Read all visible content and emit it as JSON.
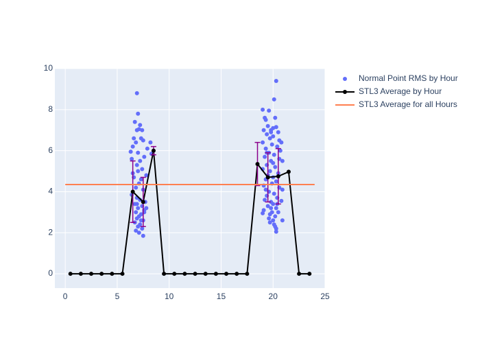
{
  "chart_data": {
    "type": "scatter",
    "xlim": [
      -1,
      25
    ],
    "ylim": [
      -0.7,
      10
    ],
    "xticks": [
      0,
      5,
      10,
      15,
      20,
      25
    ],
    "yticks": [
      0,
      2,
      4,
      6,
      8,
      10
    ],
    "grid": true,
    "legend": "right",
    "series": [
      {
        "name": "Normal Point RMS by Hour",
        "mode": "markers",
        "color": "#636efa",
        "x": [
          6.9,
          7.0,
          6.7,
          7.2,
          6.9,
          7.1,
          7.4,
          6.6,
          7.3,
          7.5,
          6.8,
          8.2,
          6.5,
          7.9,
          6.3,
          7.0,
          8.3,
          7.6,
          6.4,
          7.2,
          6.9,
          7.4,
          7.0,
          6.5,
          7.8,
          6.6,
          7.3,
          7.1,
          6.8,
          7.5,
          6.4,
          6.9,
          7.2,
          7.7,
          6.7,
          7.4,
          7.0,
          7.6,
          6.8,
          7.3,
          7.1,
          6.9,
          7.5,
          6.7,
          7.2,
          7.0,
          7.4,
          6.8,
          7.1,
          7.5,
          7.6,
          7.8,
          7.3,
          6.9,
          20.3,
          20.1,
          19.0,
          19.6,
          19.2,
          19.3,
          20.2,
          19.5,
          20.0,
          20.3,
          19.1,
          19.8,
          20.5,
          19.4,
          20.0,
          19.7,
          20.8,
          19.0,
          19.9,
          20.4,
          19.3,
          20.7,
          19.6,
          20.1,
          19.2,
          20.6,
          19.8,
          20.9,
          19.4,
          20.2,
          19.0,
          19.7,
          20.5,
          19.5,
          20.0,
          19.3,
          20.3,
          19.9,
          19.1,
          20.6,
          20.9,
          19.6,
          20.1,
          19.4,
          20.4,
          19.2,
          20.8,
          19.8,
          20.0,
          19.5,
          20.3,
          19.1,
          19.9,
          20.5,
          19.0,
          19.7,
          20.2,
          19.6,
          20.0,
          20.9,
          19.7,
          20.1,
          20.2,
          20.3,
          20.3,
          19.8,
          20.6,
          19.4,
          20.0,
          19.3,
          20.4,
          19.8
        ],
        "values": [
          8.8,
          7.8,
          7.4,
          7.25,
          7.0,
          7.05,
          7.0,
          6.6,
          6.6,
          6.5,
          6.4,
          6.4,
          6.2,
          6.1,
          5.95,
          5.9,
          5.85,
          5.7,
          5.6,
          5.5,
          5.3,
          5.1,
          5.0,
          4.9,
          4.8,
          4.7,
          4.6,
          4.4,
          4.2,
          4.1,
          3.85,
          3.7,
          3.6,
          3.5,
          3.4,
          3.3,
          3.2,
          3.1,
          3.0,
          2.9,
          2.8,
          2.7,
          2.6,
          2.5,
          2.4,
          2.3,
          2.2,
          2.1,
          2.0,
          1.85,
          3.0,
          3.2,
          2.6,
          3.4,
          9.4,
          8.5,
          8.0,
          7.95,
          7.6,
          7.5,
          7.6,
          7.2,
          7.1,
          7.15,
          7.0,
          7.0,
          6.9,
          6.8,
          6.7,
          6.6,
          6.4,
          6.4,
          6.3,
          6.2,
          6.1,
          6.0,
          5.9,
          5.8,
          5.7,
          5.6,
          5.5,
          5.5,
          5.3,
          5.2,
          5.1,
          5.0,
          4.9,
          4.8,
          4.7,
          4.6,
          4.5,
          4.4,
          4.3,
          4.2,
          4.1,
          4.0,
          3.9,
          3.8,
          3.7,
          3.6,
          3.55,
          3.5,
          3.4,
          3.3,
          3.2,
          3.1,
          3.0,
          3.0,
          2.95,
          2.9,
          2.8,
          2.7,
          2.6,
          2.6,
          2.5,
          2.4,
          2.3,
          2.2,
          2.05,
          6.9,
          6.5,
          5.9,
          5.4,
          4.1,
          3.4,
          3.2
        ]
      },
      {
        "name": "STL3 Average by Hour",
        "mode": "lines+markers",
        "color": "#000000",
        "error_color": "#8b008b",
        "x": [
          0.5,
          1.5,
          2.5,
          3.5,
          4.5,
          5.5,
          6.5,
          7.5,
          8.5,
          9.5,
          10.5,
          11.5,
          12.5,
          13.5,
          14.5,
          15.5,
          16.5,
          17.5,
          18.5,
          19.5,
          20.5,
          21.5,
          22.5,
          23.5
        ],
        "values": [
          0,
          0,
          0,
          0,
          0,
          0,
          4.0,
          3.5,
          6.0,
          0,
          0,
          0,
          0,
          0,
          0,
          0,
          0,
          0,
          5.35,
          4.7,
          4.75,
          4.97,
          0,
          0
        ],
        "errors": [
          0,
          0,
          0,
          0,
          0,
          0,
          1.5,
          1.2,
          0.2,
          0,
          0,
          0,
          0,
          0,
          0,
          0,
          0,
          0,
          1.05,
          1.2,
          1.35,
          0,
          0,
          0
        ]
      },
      {
        "name": "STL3 Average for all Hours",
        "mode": "lines",
        "color": "#ff7f50",
        "x": [
          0,
          24
        ],
        "values": [
          4.35,
          4.35
        ]
      }
    ]
  }
}
